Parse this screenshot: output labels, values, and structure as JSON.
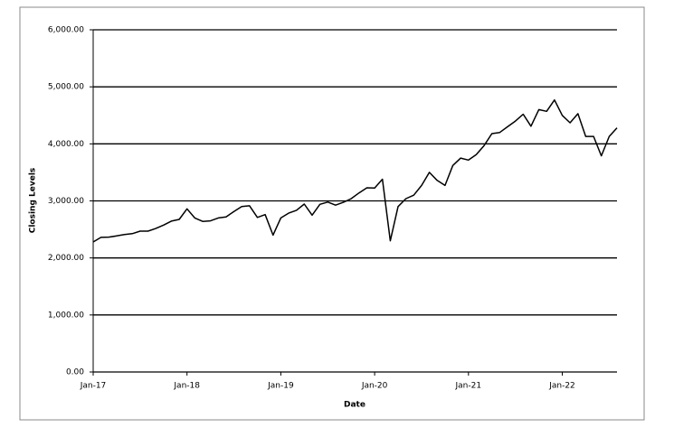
{
  "chart_data": {
    "type": "line",
    "x_title": "Date",
    "y_title": "Closing Levels",
    "x": [
      "2017-01",
      "2017-02",
      "2017-03",
      "2017-04",
      "2017-05",
      "2017-06",
      "2017-07",
      "2017-08",
      "2017-09",
      "2017-10",
      "2017-11",
      "2017-12",
      "2018-01",
      "2018-02",
      "2018-03",
      "2018-04",
      "2018-05",
      "2018-06",
      "2018-07",
      "2018-08",
      "2018-09",
      "2018-10",
      "2018-11",
      "2018-12",
      "2019-01",
      "2019-02",
      "2019-03",
      "2019-04",
      "2019-05",
      "2019-06",
      "2019-07",
      "2019-08",
      "2019-09",
      "2019-10",
      "2019-11",
      "2019-12",
      "2020-01",
      "2020-02",
      "2020-03",
      "2020-04",
      "2020-05",
      "2020-06",
      "2020-07",
      "2020-08",
      "2020-09",
      "2020-10",
      "2020-11",
      "2020-12",
      "2021-01",
      "2021-02",
      "2021-03",
      "2021-04",
      "2021-05",
      "2021-06",
      "2021-07",
      "2021-08",
      "2021-09",
      "2021-10",
      "2021-11",
      "2021-12",
      "2022-01",
      "2022-02",
      "2022-03",
      "2022-04",
      "2022-05",
      "2022-06",
      "2022-07",
      "2022-08"
    ],
    "series": [
      {
        "name": "Closing Levels",
        "color": "#000000",
        "values": [
          2280,
          2360,
          2365,
          2385,
          2410,
          2425,
          2470,
          2470,
          2515,
          2575,
          2645,
          2675,
          2860,
          2700,
          2640,
          2650,
          2700,
          2720,
          2815,
          2900,
          2915,
          2710,
          2760,
          2400,
          2700,
          2785,
          2835,
          2945,
          2750,
          2940,
          2980,
          2925,
          2975,
          3040,
          3140,
          3230,
          3225,
          3380,
          2300,
          2900,
          3040,
          3100,
          3270,
          3500,
          3360,
          3270,
          3620,
          3750,
          3715,
          3810,
          3970,
          4180,
          4200,
          4300,
          4400,
          4520,
          4310,
          4600,
          4570,
          4770,
          4500,
          4370,
          4530,
          4130,
          4130,
          3790,
          4130,
          4280
        ]
      }
    ],
    "xlim": [
      "2017-01",
      "2022-08"
    ],
    "xticks": [
      {
        "value": "2017-01",
        "label": "Jan-17"
      },
      {
        "value": "2018-01",
        "label": "Jan-18"
      },
      {
        "value": "2019-01",
        "label": "Jan-19"
      },
      {
        "value": "2020-01",
        "label": "Jan-20"
      },
      {
        "value": "2021-01",
        "label": "Jan-21"
      },
      {
        "value": "2022-01",
        "label": "Jan-22"
      }
    ],
    "ylim": [
      0,
      6000
    ],
    "yticks": [
      {
        "value": 0,
        "label": "0.00"
      },
      {
        "value": 1000,
        "label": "1,000.00"
      },
      {
        "value": 2000,
        "label": "2,000.00"
      },
      {
        "value": 3000,
        "label": "3,000.00"
      },
      {
        "value": 4000,
        "label": "4,000.00"
      },
      {
        "value": 5000,
        "label": "5,000.00"
      },
      {
        "value": 6000,
        "label": "6,000.00"
      }
    ],
    "grid": true
  }
}
